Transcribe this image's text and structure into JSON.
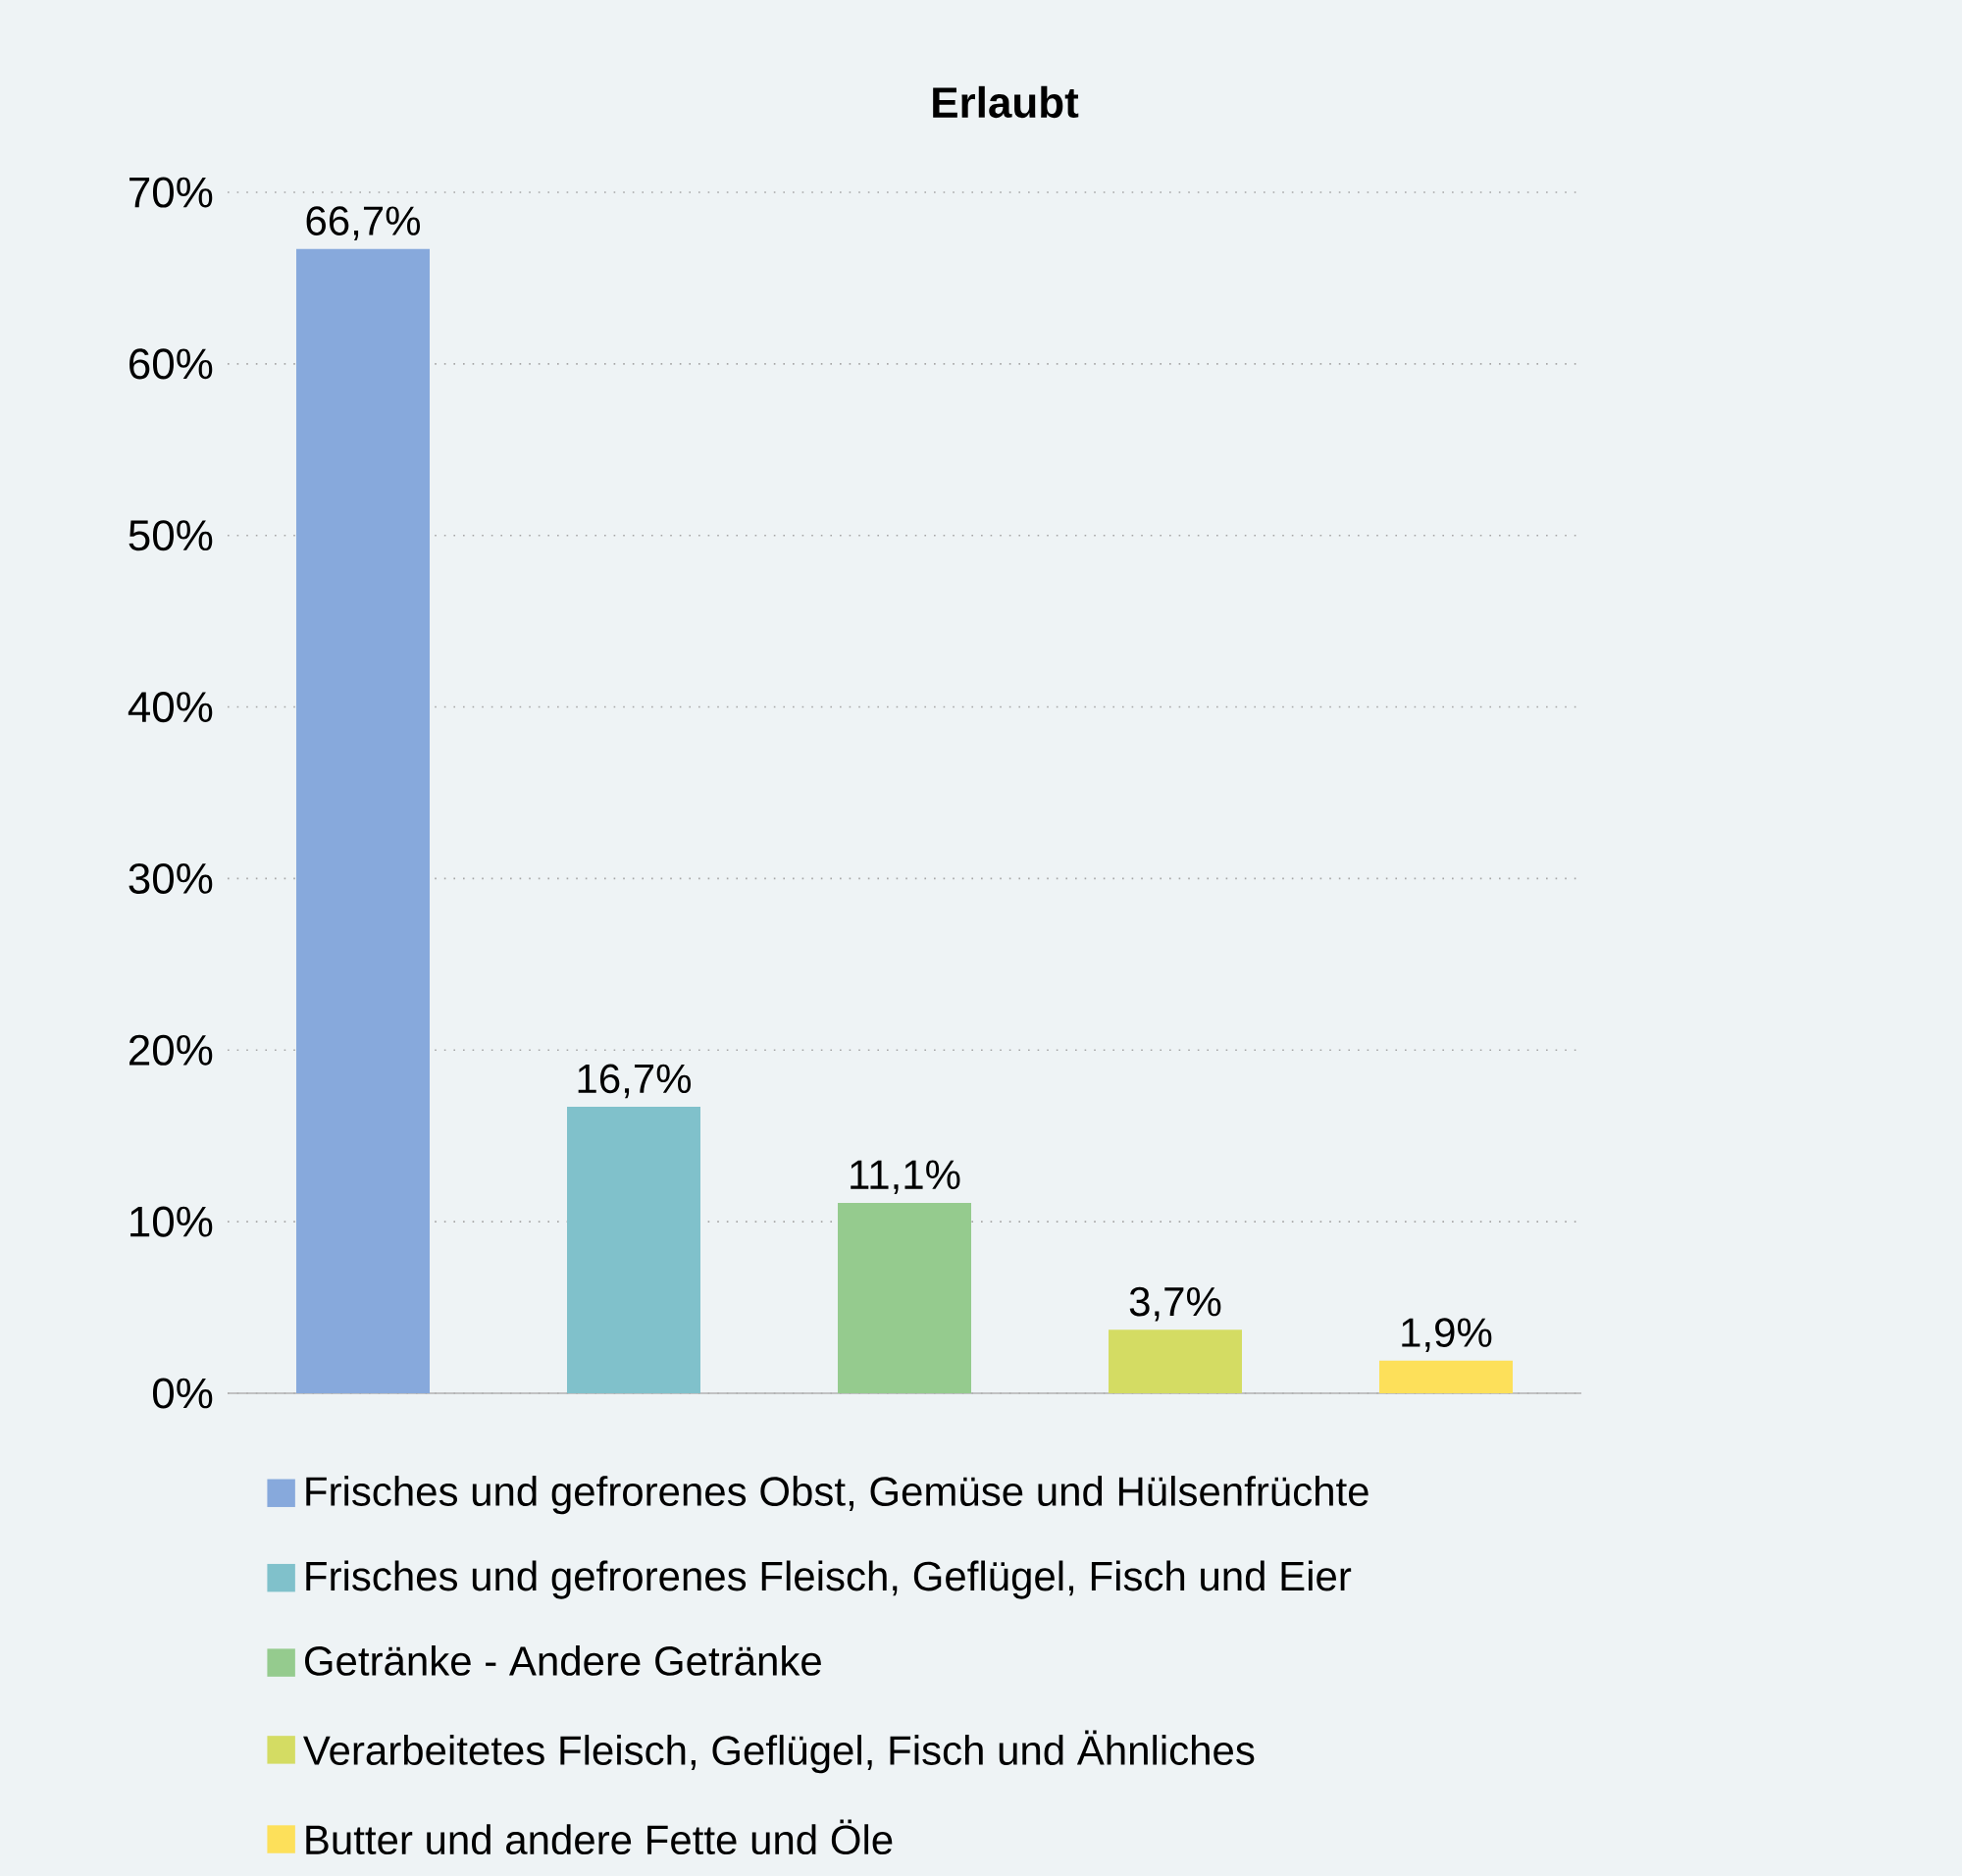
{
  "chart_data": {
    "type": "bar",
    "title": "Erlaubt",
    "categories": [
      null
    ],
    "series": [
      {
        "name": "Frisches und gefrorenes Obst, Gemüse und Hülsenfrüchte",
        "color": "#87a9dc",
        "values": [
          66.7
        ],
        "value_labels": [
          "66,7%"
        ]
      },
      {
        "name": "Frisches und gefrorenes Fleisch, Geflügel, Fisch und Eier",
        "color": "#80c1cb",
        "values": [
          16.7
        ],
        "value_labels": [
          "16,7%"
        ]
      },
      {
        "name": "Getränke - Andere Getränke",
        "color": "#95cb8e",
        "values": [
          11.1
        ],
        "value_labels": [
          "11,1%"
        ]
      },
      {
        "name": "Verarbeitetes Fleisch, Geflügel, Fisch und Ähnliches",
        "color": "#d4dc63",
        "values": [
          3.7
        ],
        "value_labels": [
          "3,7%"
        ]
      },
      {
        "name": "Butter und andere Fette und Öle",
        "color": "#fde05a",
        "values": [
          1.9
        ],
        "value_labels": [
          "1,9%"
        ]
      }
    ],
    "ylim": [
      0,
      70
    ],
    "yticks": [
      {
        "value": 0,
        "label": "0%"
      },
      {
        "value": 10,
        "label": "10%"
      },
      {
        "value": 20,
        "label": "20%"
      },
      {
        "value": 30,
        "label": "30%"
      },
      {
        "value": 40,
        "label": "40%"
      },
      {
        "value": 50,
        "label": "50%"
      },
      {
        "value": 60,
        "label": "60%"
      },
      {
        "value": 70,
        "label": "70%"
      }
    ],
    "grid": "y",
    "legend": "bottom",
    "tick_labels": "y"
  }
}
